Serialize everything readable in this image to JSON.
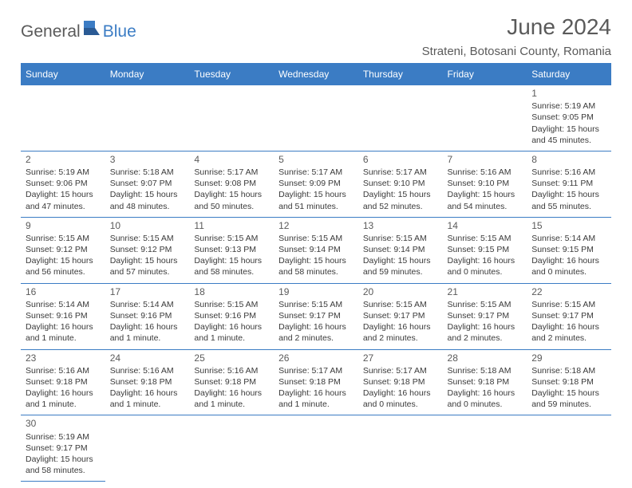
{
  "logo": {
    "part1": "General",
    "part2": "Blue"
  },
  "title": "June 2024",
  "location": "Strateni, Botosani County, Romania",
  "colors": {
    "brand": "#3b7cc4",
    "text": "#5a5a5a",
    "cell_text": "#3a3a3a",
    "bg": "#ffffff"
  },
  "weekdays": [
    "Sunday",
    "Monday",
    "Tuesday",
    "Wednesday",
    "Thursday",
    "Friday",
    "Saturday"
  ],
  "weeks": [
    [
      null,
      null,
      null,
      null,
      null,
      null,
      {
        "d": "1",
        "sr": "5:19 AM",
        "ss": "9:05 PM",
        "dl": "15 hours and 45 minutes."
      }
    ],
    [
      {
        "d": "2",
        "sr": "5:19 AM",
        "ss": "9:06 PM",
        "dl": "15 hours and 47 minutes."
      },
      {
        "d": "3",
        "sr": "5:18 AM",
        "ss": "9:07 PM",
        "dl": "15 hours and 48 minutes."
      },
      {
        "d": "4",
        "sr": "5:17 AM",
        "ss": "9:08 PM",
        "dl": "15 hours and 50 minutes."
      },
      {
        "d": "5",
        "sr": "5:17 AM",
        "ss": "9:09 PM",
        "dl": "15 hours and 51 minutes."
      },
      {
        "d": "6",
        "sr": "5:17 AM",
        "ss": "9:10 PM",
        "dl": "15 hours and 52 minutes."
      },
      {
        "d": "7",
        "sr": "5:16 AM",
        "ss": "9:10 PM",
        "dl": "15 hours and 54 minutes."
      },
      {
        "d": "8",
        "sr": "5:16 AM",
        "ss": "9:11 PM",
        "dl": "15 hours and 55 minutes."
      }
    ],
    [
      {
        "d": "9",
        "sr": "5:15 AM",
        "ss": "9:12 PM",
        "dl": "15 hours and 56 minutes."
      },
      {
        "d": "10",
        "sr": "5:15 AM",
        "ss": "9:12 PM",
        "dl": "15 hours and 57 minutes."
      },
      {
        "d": "11",
        "sr": "5:15 AM",
        "ss": "9:13 PM",
        "dl": "15 hours and 58 minutes."
      },
      {
        "d": "12",
        "sr": "5:15 AM",
        "ss": "9:14 PM",
        "dl": "15 hours and 58 minutes."
      },
      {
        "d": "13",
        "sr": "5:15 AM",
        "ss": "9:14 PM",
        "dl": "15 hours and 59 minutes."
      },
      {
        "d": "14",
        "sr": "5:15 AM",
        "ss": "9:15 PM",
        "dl": "16 hours and 0 minutes."
      },
      {
        "d": "15",
        "sr": "5:14 AM",
        "ss": "9:15 PM",
        "dl": "16 hours and 0 minutes."
      }
    ],
    [
      {
        "d": "16",
        "sr": "5:14 AM",
        "ss": "9:16 PM",
        "dl": "16 hours and 1 minute."
      },
      {
        "d": "17",
        "sr": "5:14 AM",
        "ss": "9:16 PM",
        "dl": "16 hours and 1 minute."
      },
      {
        "d": "18",
        "sr": "5:15 AM",
        "ss": "9:16 PM",
        "dl": "16 hours and 1 minute."
      },
      {
        "d": "19",
        "sr": "5:15 AM",
        "ss": "9:17 PM",
        "dl": "16 hours and 2 minutes."
      },
      {
        "d": "20",
        "sr": "5:15 AM",
        "ss": "9:17 PM",
        "dl": "16 hours and 2 minutes."
      },
      {
        "d": "21",
        "sr": "5:15 AM",
        "ss": "9:17 PM",
        "dl": "16 hours and 2 minutes."
      },
      {
        "d": "22",
        "sr": "5:15 AM",
        "ss": "9:17 PM",
        "dl": "16 hours and 2 minutes."
      }
    ],
    [
      {
        "d": "23",
        "sr": "5:16 AM",
        "ss": "9:18 PM",
        "dl": "16 hours and 1 minute."
      },
      {
        "d": "24",
        "sr": "5:16 AM",
        "ss": "9:18 PM",
        "dl": "16 hours and 1 minute."
      },
      {
        "d": "25",
        "sr": "5:16 AM",
        "ss": "9:18 PM",
        "dl": "16 hours and 1 minute."
      },
      {
        "d": "26",
        "sr": "5:17 AM",
        "ss": "9:18 PM",
        "dl": "16 hours and 1 minute."
      },
      {
        "d": "27",
        "sr": "5:17 AM",
        "ss": "9:18 PM",
        "dl": "16 hours and 0 minutes."
      },
      {
        "d": "28",
        "sr": "5:18 AM",
        "ss": "9:18 PM",
        "dl": "16 hours and 0 minutes."
      },
      {
        "d": "29",
        "sr": "5:18 AM",
        "ss": "9:18 PM",
        "dl": "15 hours and 59 minutes."
      }
    ],
    [
      {
        "d": "30",
        "sr": "5:19 AM",
        "ss": "9:17 PM",
        "dl": "15 hours and 58 minutes."
      },
      null,
      null,
      null,
      null,
      null,
      null
    ]
  ],
  "labels": {
    "sunrise": "Sunrise: ",
    "sunset": "Sunset: ",
    "daylight": "Daylight: "
  }
}
